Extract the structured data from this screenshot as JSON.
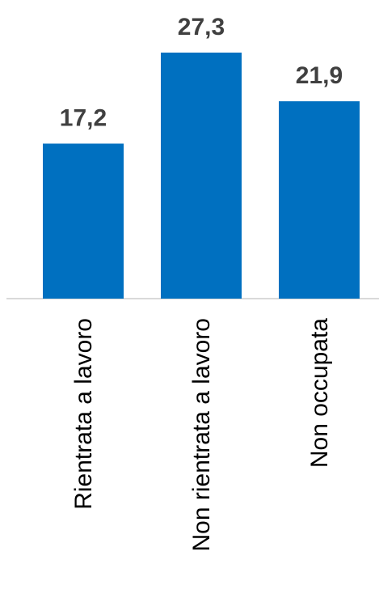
{
  "chart_data": {
    "type": "bar",
    "categories": [
      "Rientrata a lavoro",
      "Non rientrata a lavoro",
      "Non occupata"
    ],
    "values": [
      17.2,
      27.3,
      21.9
    ],
    "value_labels": [
      "17,2",
      "27,3",
      "21,9"
    ],
    "title": "",
    "xlabel": "",
    "ylabel": "",
    "ylim": [
      0,
      27.3
    ],
    "grid": false,
    "legend": "none",
    "bar_color": "#0070C0",
    "axis_color": "#D9D9D9",
    "label_color": "#404040",
    "category_label_orientation": "vertical"
  }
}
